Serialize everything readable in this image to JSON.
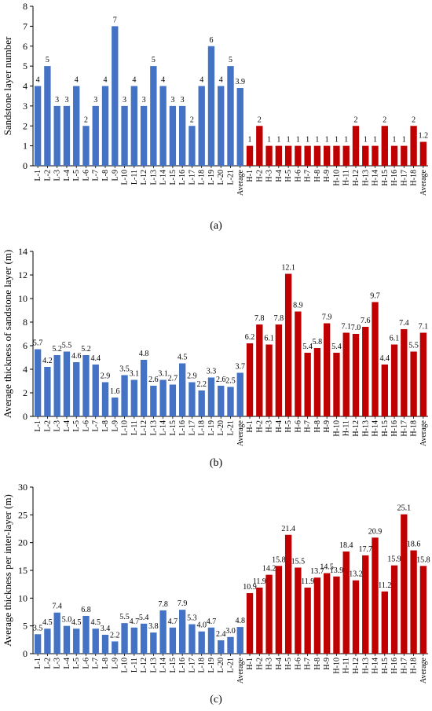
{
  "chart_data": [
    {
      "type": "bar",
      "panel_label": "(a)",
      "ylabel": "Sandstone layer number",
      "ylim": [
        0,
        8
      ],
      "yticks": [
        0,
        1,
        2,
        3,
        4,
        5,
        6,
        7,
        8
      ],
      "categories": [
        "L-1",
        "L-2",
        "L-3",
        "L-4",
        "L-5",
        "L-6",
        "L-7",
        "L-8",
        "L-9",
        "L-10",
        "L-11",
        "L-12",
        "L-13",
        "L-14",
        "L-15",
        "L-16",
        "L-17",
        "L-18",
        "L-19",
        "L-20",
        "L-21",
        "Average",
        "H-1",
        "H-2",
        "H-3",
        "H-4",
        "H-5",
        "H-6",
        "H-7",
        "H-8",
        "H-9",
        "H-10",
        "H-11",
        "H-12",
        "H-13",
        "H-14",
        "H-15",
        "H-16",
        "H-17",
        "H-18",
        "Average"
      ],
      "values": [
        4,
        5,
        3,
        3,
        4,
        2,
        3,
        4,
        7,
        3,
        4,
        3,
        5,
        4,
        3,
        3,
        2,
        4,
        6,
        4,
        5,
        3.9,
        1,
        2,
        1,
        1,
        1,
        1,
        1,
        1,
        1,
        1,
        1,
        2,
        1,
        1,
        2,
        1,
        1,
        2,
        1.2
      ],
      "labels": [
        "4",
        "5",
        "3",
        "3",
        "4",
        "2",
        "3",
        "4",
        "7",
        "3",
        "4",
        "3",
        "5",
        "4",
        "3",
        "3",
        "2",
        "4",
        "6",
        "4",
        "5",
        "3.9",
        "1",
        "2",
        "1",
        "1",
        "1",
        "1",
        "1",
        "1",
        "1",
        "1",
        "1",
        "2",
        "1",
        "1",
        "2",
        "1",
        "1",
        "2",
        "1.2"
      ],
      "grid": false,
      "colors": {
        "group_l": "#4472c4",
        "group_h": "#c00000"
      }
    },
    {
      "type": "bar",
      "panel_label": "(b)",
      "ylabel": "Average thickness of sandstone layer (m)",
      "ylim": [
        0,
        14
      ],
      "yticks": [
        0,
        2,
        4,
        6,
        8,
        10,
        12,
        14
      ],
      "categories": [
        "L-1",
        "L-2",
        "L-3",
        "L-4",
        "L-5",
        "L-6",
        "L-7",
        "L-8",
        "L-9",
        "L-10",
        "L-11",
        "L-12",
        "L-13",
        "L-14",
        "L-15",
        "L-16",
        "L-17",
        "L-18",
        "L-19",
        "L-20",
        "L-21",
        "Average",
        "H-1",
        "H-2",
        "H-3",
        "H-4",
        "H-5",
        "H-6",
        "H-7",
        "H-8",
        "H-9",
        "H-10",
        "H-11",
        "H-12",
        "H-13",
        "H-14",
        "H-15",
        "H-16",
        "H-17",
        "H-18",
        "Average"
      ],
      "values": [
        5.7,
        4.2,
        5.2,
        5.5,
        4.6,
        5.2,
        4.4,
        2.9,
        1.6,
        3.5,
        3.1,
        4.8,
        2.6,
        3.1,
        2.7,
        4.5,
        2.9,
        2.2,
        3.3,
        2.6,
        2.5,
        3.7,
        6.2,
        7.8,
        6.1,
        7.8,
        12.1,
        8.9,
        5.4,
        5.8,
        7.9,
        5.4,
        7.1,
        7.0,
        7.6,
        9.7,
        4.4,
        6.1,
        7.4,
        5.5,
        7.1
      ],
      "labels": [
        "5.7",
        "4.2",
        "5.2",
        "5.5",
        "4.6",
        "5.2",
        "4.4",
        "2.9",
        "1.6",
        "3.5",
        "3.1",
        "4.8",
        "2.6",
        "3.1",
        "2.7",
        "4.5",
        "2.9",
        "2.2",
        "3.3",
        "2.6",
        "2.5",
        "3.7",
        "6.2",
        "7.8",
        "6.1",
        "7.8",
        "12.1",
        "8.9",
        "5.4",
        "5.8",
        "7.9",
        "5.4",
        "7.1",
        "7.0",
        "7.6",
        "9.7",
        "4.4",
        "6.1",
        "7.4",
        "5.5",
        "7.1"
      ],
      "grid": false,
      "colors": {
        "group_l": "#4472c4",
        "group_h": "#c00000"
      }
    },
    {
      "type": "bar",
      "panel_label": "(c)",
      "ylabel": "Average thickness per inter-layer (m)",
      "ylim": [
        0,
        30
      ],
      "yticks": [
        0,
        5,
        10,
        15,
        20,
        25,
        30
      ],
      "categories": [
        "L-1",
        "L-2",
        "L-3",
        "L-4",
        "L-5",
        "L-6",
        "L-7",
        "L-8",
        "L-9",
        "L-10",
        "L-11",
        "L-12",
        "L-13",
        "L-14",
        "L-15",
        "L-16",
        "L-17",
        "L-18",
        "L-19",
        "L-20",
        "L-21",
        "Average",
        "H-1",
        "H-2",
        "H-3",
        "H-4",
        "H-5",
        "H-6",
        "H-7",
        "H-8",
        "H-9",
        "H-10",
        "H-11",
        "H-12",
        "H-13",
        "H-14",
        "H-15",
        "H-16",
        "H-17",
        "H-18",
        "Average"
      ],
      "values": [
        3.5,
        4.5,
        7.4,
        5.0,
        4.5,
        6.8,
        4.5,
        3.4,
        2.2,
        5.5,
        4.7,
        5.4,
        3.8,
        7.8,
        4.7,
        7.9,
        5.3,
        4.0,
        4.7,
        2.4,
        3.0,
        4.8,
        10.9,
        11.9,
        14.2,
        15.8,
        21.4,
        15.5,
        11.9,
        13.7,
        14.5,
        13.9,
        18.4,
        13.2,
        17.7,
        20.9,
        11.2,
        15.9,
        25.1,
        18.6,
        15.8
      ],
      "labels": [
        "3.5",
        "4.5",
        "7.4",
        "5.0",
        "4.5",
        "6.8",
        "4.5",
        "3.4",
        "2.2",
        "5.5",
        "4.7",
        "5.4",
        "3.8",
        "7.8",
        "4.7",
        "7.9",
        "5.3",
        "4.0",
        "4.7",
        "2.4",
        "3.0",
        "4.8",
        "10.9",
        "11.9",
        "14.2",
        "15.8",
        "21.4",
        "15.5",
        "11.9",
        "13.7",
        "14.5",
        "13.9",
        "18.4",
        "13.2",
        "17.7",
        "20.9",
        "11.2",
        "15.9",
        "25.1",
        "18.6",
        "15.8"
      ],
      "grid": false,
      "colors": {
        "group_l": "#4472c4",
        "group_h": "#c00000"
      }
    }
  ]
}
